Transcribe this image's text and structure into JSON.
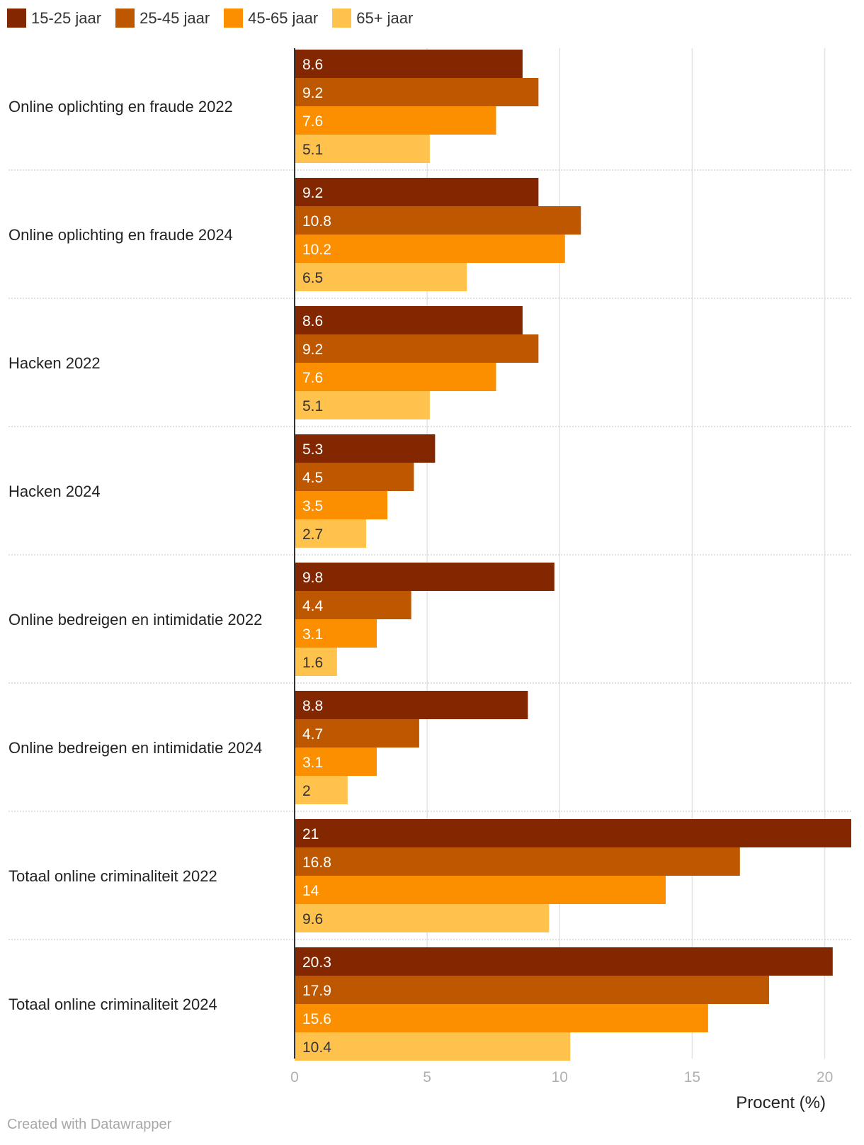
{
  "chart_data": {
    "type": "bar",
    "orientation": "horizontal",
    "categories": [
      "Online oplichting en fraude 2022",
      "Online oplichting en fraude 2024",
      "Hacken 2022",
      "Hacken 2024",
      "Online bedreigen en intimidatie 2022",
      "Online bedreigen en intimidatie 2024",
      "Totaal online criminaliteit 2022",
      "Totaal online criminaliteit 2024"
    ],
    "series": [
      {
        "name": "15-25 jaar",
        "color": "#832700",
        "label_color": "#ffffff",
        "values": [
          8.6,
          9.2,
          8.6,
          5.3,
          9.8,
          8.8,
          21,
          20.3
        ]
      },
      {
        "name": "25-45 jaar",
        "color": "#bd5700",
        "label_color": "#ffffff",
        "values": [
          9.2,
          10.8,
          9.2,
          4.5,
          4.4,
          4.7,
          16.8,
          17.9
        ]
      },
      {
        "name": "45-65 jaar",
        "color": "#fb8f00",
        "label_color": "#ffffff",
        "values": [
          7.6,
          10.2,
          7.6,
          3.5,
          3.1,
          3.1,
          14,
          15.6
        ]
      },
      {
        "name": "65+ jaar",
        "color": "#ffc24d",
        "label_color": "#333333",
        "values": [
          5.1,
          6.5,
          5.1,
          2.7,
          1.6,
          2,
          9.6,
          10.4
        ]
      }
    ],
    "xlabel": "Procent (%)",
    "xlim": [
      0,
      21
    ],
    "xticks": [
      0,
      5,
      10,
      15,
      20
    ],
    "grid": true
  },
  "footer": {
    "credit": "Created with Datawrapper"
  }
}
